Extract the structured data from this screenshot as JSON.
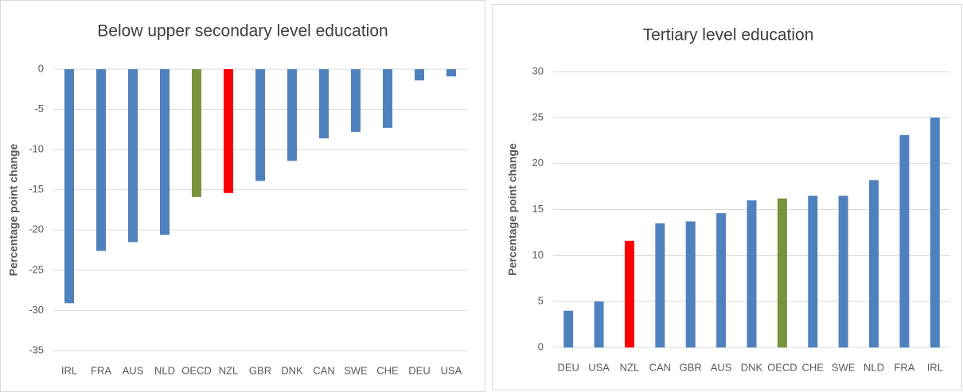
{
  "chart_data": [
    {
      "type": "bar",
      "title": "Below upper secondary level education",
      "y_label": "Percentage point change",
      "categories": [
        "IRL",
        "FRA",
        "AUS",
        "NLD",
        "OECD",
        "NZL",
        "GBR",
        "DNK",
        "CAN",
        "SWE",
        "CHE",
        "DEU",
        "USA"
      ],
      "values": [
        -29.1,
        -22.6,
        -21.5,
        -20.6,
        -15.9,
        -15.4,
        -13.9,
        -11.4,
        -8.6,
        -7.8,
        -7.3,
        -1.4,
        -0.9
      ],
      "colors": [
        "#4f81bd",
        "#4f81bd",
        "#4f81bd",
        "#4f81bd",
        "#77933c",
        "#ff0000",
        "#4f81bd",
        "#4f81bd",
        "#4f81bd",
        "#4f81bd",
        "#4f81bd",
        "#4f81bd",
        "#4f81bd"
      ],
      "ylim": [
        -35,
        0
      ],
      "yticks": [
        0,
        -5,
        -10,
        -15,
        -20,
        -25,
        -30,
        -35
      ],
      "grid": true
    },
    {
      "type": "bar",
      "title": "Tertiary level education",
      "y_label": "Percentage point change",
      "categories": [
        "DEU",
        "USA",
        "NZL",
        "CAN",
        "GBR",
        "AUS",
        "DNK",
        "OECD",
        "CHE",
        "SWE",
        "NLD",
        "FRA",
        "IRL"
      ],
      "values": [
        4,
        5,
        11.6,
        13.5,
        13.7,
        14.6,
        16,
        16.2,
        16.5,
        16.5,
        18.2,
        23.1,
        25
      ],
      "colors": [
        "#4f81bd",
        "#4f81bd",
        "#ff0000",
        "#4f81bd",
        "#4f81bd",
        "#4f81bd",
        "#4f81bd",
        "#77933c",
        "#4f81bd",
        "#4f81bd",
        "#4f81bd",
        "#4f81bd",
        "#4f81bd"
      ],
      "ylim": [
        0,
        30
      ],
      "yticks": [
        0,
        5,
        10,
        15,
        20,
        25,
        30
      ],
      "grid": true
    }
  ]
}
